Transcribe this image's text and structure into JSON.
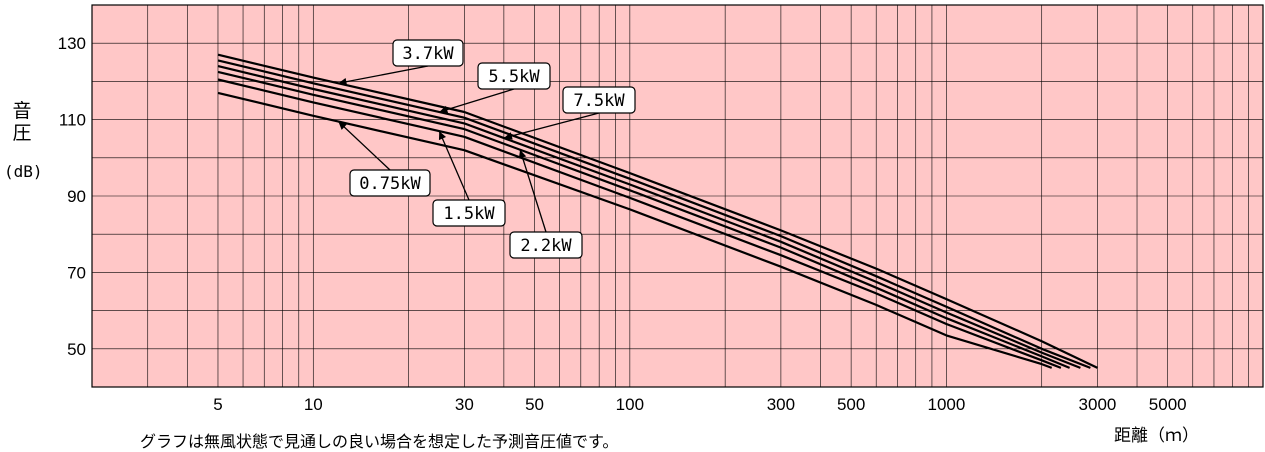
{
  "chart_data": {
    "type": "line",
    "xlabel": "距離（ｍ）",
    "ylabel": "音圧",
    "ylabel_unit": "(dB)",
    "x_scale": "log",
    "xlim": [
      2,
      10000
    ],
    "ylim": [
      40,
      140
    ],
    "x_ticks": [
      5,
      10,
      30,
      50,
      100,
      300,
      500,
      1000,
      3000,
      5000
    ],
    "y_ticks": [
      50,
      70,
      90,
      110,
      130
    ],
    "grid": true,
    "background_color": "#ffc7c7",
    "line_color": "#000000",
    "series": [
      {
        "name": "3.7kW",
        "x": [
          5,
          10,
          30,
          100,
          300,
          600,
          1000,
          2000,
          3000
        ],
        "y": [
          127,
          121,
          112,
          96,
          81,
          71,
          63,
          52,
          45
        ]
      },
      {
        "name": "5.5kW",
        "x": [
          5,
          10,
          30,
          100,
          300,
          600,
          1000,
          2000,
          2850
        ],
        "y": [
          125.5,
          119.5,
          110.5,
          94.5,
          79.5,
          69,
          61,
          50,
          45
        ]
      },
      {
        "name": "7.5kW",
        "x": [
          5,
          10,
          30,
          100,
          300,
          600,
          1000,
          2000,
          2650
        ],
        "y": [
          124,
          118,
          109,
          93,
          78,
          67.5,
          59.5,
          49,
          45
        ]
      },
      {
        "name": "2.2kW",
        "x": [
          5,
          10,
          30,
          100,
          300,
          600,
          1000,
          2000,
          2450
        ],
        "y": [
          122.5,
          116.5,
          107.5,
          91.5,
          76.5,
          66,
          58,
          48,
          45
        ]
      },
      {
        "name": "1.5kW",
        "x": [
          5,
          10,
          30,
          100,
          300,
          600,
          1000,
          2000,
          2300
        ],
        "y": [
          120.5,
          114.5,
          105.5,
          89.5,
          74.5,
          64.5,
          56.5,
          47,
          45
        ]
      },
      {
        "name": "0.75kW",
        "x": [
          5,
          10,
          30,
          100,
          300,
          600,
          1000,
          2000,
          2150
        ],
        "y": [
          117,
          111,
          102,
          86.5,
          71.5,
          61.5,
          53.5,
          46,
          45
        ]
      }
    ],
    "annotations": [
      {
        "label": "3.7kW",
        "series": "3.7kW"
      },
      {
        "label": "5.5kW",
        "series": "5.5kW"
      },
      {
        "label": "7.5kW",
        "series": "7.5kW"
      },
      {
        "label": "0.75kW",
        "series": "0.75kW"
      },
      {
        "label": "1.5kW",
        "series": "1.5kW"
      },
      {
        "label": "2.2kW",
        "series": "2.2kW"
      }
    ]
  },
  "note": "グラフは無風状態で見通しの良い場合を想定した予測音圧値です。"
}
